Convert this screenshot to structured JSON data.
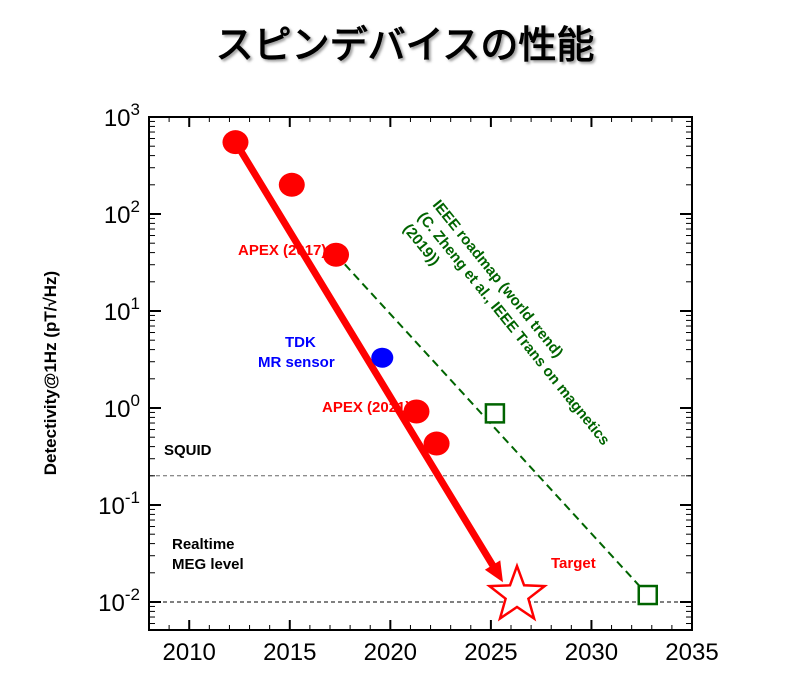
{
  "title": "スピンデバイスの性能",
  "chart_data": {
    "type": "scatter",
    "title": "スピンデバイスの性能",
    "xlabel": "",
    "ylabel": "Detectivity@1Hz (pT/√Hz)",
    "xlim": [
      2008,
      2035
    ],
    "ylim": [
      0.006,
      1000
    ],
    "yscale": "log",
    "grid": false,
    "x_ticks": [
      "2010",
      "2015",
      "2020",
      "2025",
      "2030",
      "2035"
    ],
    "x_tick_values": [
      2010,
      2015,
      2020,
      2025,
      2030,
      2035
    ],
    "y_tick_values": [
      0.01,
      0.1,
      1,
      10,
      100,
      1000
    ],
    "y_tick_labels": [
      {
        "base": "10",
        "exp": "-2"
      },
      {
        "base": "10",
        "exp": "-1"
      },
      {
        "base": "10",
        "exp": "0"
      },
      {
        "base": "10",
        "exp": "1"
      },
      {
        "base": "10",
        "exp": "2"
      },
      {
        "base": "10",
        "exp": "3"
      }
    ],
    "series": [
      {
        "points": [
          [
            2012.3,
            550
          ],
          [
            2015.1,
            200
          ],
          [
            2017.3,
            38
          ],
          [
            2021.3,
            0.92
          ],
          [
            2022.3,
            0.43
          ]
        ],
        "color": "#ff0000",
        "marker": "circle"
      },
      {
        "points": [
          [
            2019.6,
            3.3
          ]
        ],
        "color": "#0000ff",
        "marker": "circle"
      },
      {
        "points": [
          [
            2025.2,
            0.88
          ],
          [
            2032.8,
            0.0118
          ]
        ],
        "color": "#006400",
        "marker": "square-open"
      }
    ],
    "trend_lines": [
      {
        "from": [
          2012.3,
          550
        ],
        "to": [
          2025.6,
          0.016
        ],
        "color": "#ff0000",
        "style": "solid-arrow"
      },
      {
        "from": [
          2017.3,
          38
        ],
        "to": [
          2032.8,
          0.0118
        ],
        "color": "#006400",
        "style": "dashed"
      }
    ],
    "reference_lines": [
      {
        "y": 0.2,
        "label": "SQUID",
        "color": "#666666"
      },
      {
        "y": 0.01,
        "label": "",
        "color": "#000000"
      }
    ],
    "target": {
      "x": 2026.3,
      "y": 0.0118,
      "label": "Target",
      "color": "#ff0000"
    },
    "annotations": [
      {
        "text": "APEX (2017)",
        "color": "#ff0000"
      },
      {
        "text": "APEX (2021)",
        "color": "#ff0000"
      },
      {
        "text": "TDK",
        "color": "#0000ff"
      },
      {
        "text": "MR sensor",
        "color": "#0000ff"
      },
      {
        "text": "SQUID",
        "color": "#000000"
      },
      {
        "text": "Realtime",
        "color": "#000000"
      },
      {
        "text": "MEG level",
        "color": "#000000"
      },
      {
        "text": "Target",
        "color": "#ff0000"
      }
    ],
    "trend_label": {
      "lines": [
        "IEEE roadmap (world trend)",
        "(C. Zheng et al., IEEE Trans on magnetics",
        "(2019))"
      ],
      "color": "#006400"
    },
    "colors": {
      "red": "#ff0000",
      "blue": "#0000ff",
      "green": "#006400"
    }
  }
}
